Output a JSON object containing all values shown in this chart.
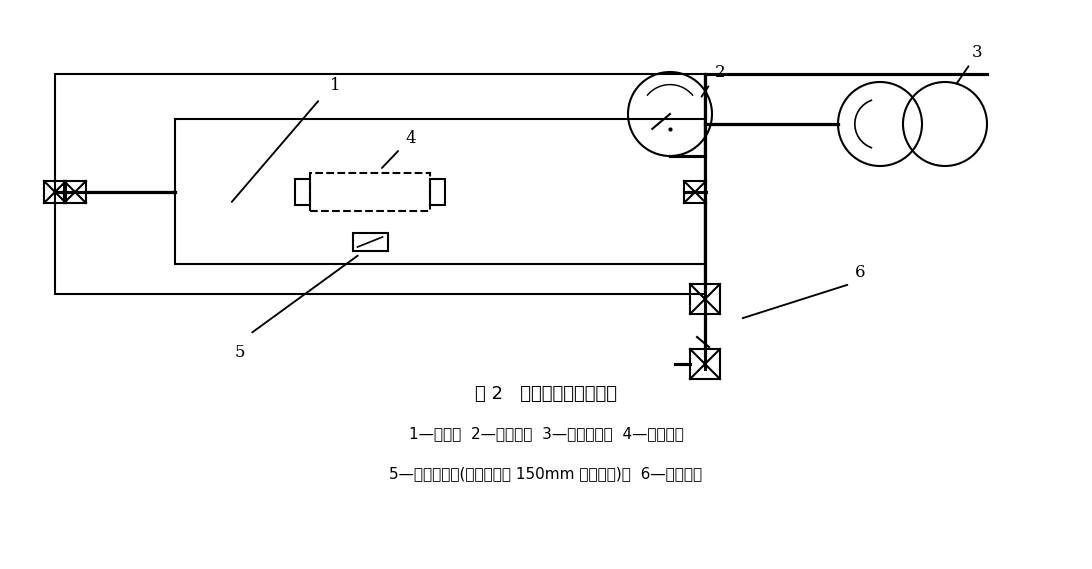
{
  "title": "图 2   热冲击试验典型装置",
  "caption_line1": "1—箱子；  2—指示表；  3—高温油泵；  4—试验管；",
  "caption_line2": "5—环境测量点(距离试验管 150mm 以内测量)；  6—高压源。",
  "bg_color": "#ffffff",
  "line_color": "#000000",
  "lw": 1.5,
  "font_size_title": 13,
  "font_size_caption": 11
}
